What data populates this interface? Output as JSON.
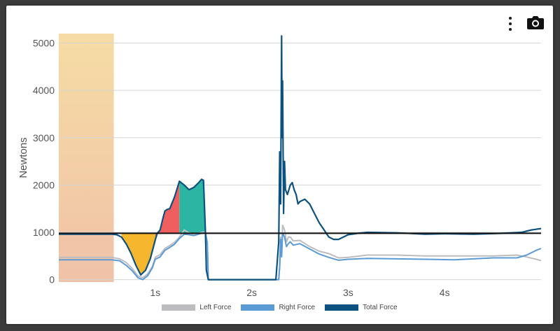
{
  "colors": {
    "left": "#bdbdc1",
    "right": "#5b9bd5",
    "total": "#0d527f",
    "reference": "#111111",
    "fill_unweight": "#f6b62d",
    "fill_braking": "#f05f5f",
    "fill_propulsive": "#2db5a3",
    "weighing_band_top": "#f6dca4",
    "weighing_band_bottom": "#f0c2a8"
  },
  "toolbar": {
    "menu_icon": "vertical-dots-icon",
    "camera_icon": "camera-icon"
  },
  "chart_data": {
    "type": "line",
    "title": "",
    "xlabel": "",
    "ylabel": "Newtons",
    "xlim": [
      0,
      5.0
    ],
    "ylim": [
      -50,
      5200
    ],
    "x_ticks": [
      1,
      2,
      3,
      4
    ],
    "x_tick_labels": [
      "1s",
      "2s",
      "3s",
      "4s"
    ],
    "y_ticks": [
      0,
      1000,
      2000,
      3000,
      4000,
      5000
    ],
    "y_tick_labels": [
      "0",
      "1000",
      "2000",
      "3000",
      "4000",
      "5000"
    ],
    "grid": "horizontal",
    "legend_position": "bottom",
    "reference_line": {
      "y": 980
    },
    "shaded_regions": [
      {
        "name": "weighing",
        "x_start": 0,
        "x_end": 0.57
      },
      {
        "name": "unweighting",
        "x_start": 0.65,
        "x_end": 1.0
      },
      {
        "name": "braking",
        "x_start": 1.0,
        "x_end": 1.25
      },
      {
        "name": "propulsion",
        "x_start": 1.25,
        "x_end": 1.53
      }
    ],
    "series": [
      {
        "name": "Left Force",
        "x": [
          0,
          0.55,
          0.63,
          0.7,
          0.76,
          0.82,
          0.87,
          0.92,
          0.97,
          1.0,
          1.05,
          1.1,
          1.15,
          1.2,
          1.25,
          1.3,
          1.35,
          1.4,
          1.45,
          1.5,
          1.52,
          1.54,
          1.55,
          2.0,
          2.28,
          2.29,
          2.3,
          2.31,
          2.32,
          2.34,
          2.36,
          2.38,
          2.4,
          2.43,
          2.5,
          2.6,
          2.7,
          2.8,
          2.9,
          3.0,
          3.2,
          3.5,
          3.8,
          4.1,
          4.5,
          4.75,
          4.85,
          4.95,
          5.0
        ],
        "y": [
          470,
          470,
          440,
          360,
          240,
          80,
          40,
          120,
          280,
          470,
          530,
          660,
          720,
          790,
          900,
          1050,
          990,
          950,
          980,
          1010,
          1000,
          800,
          0,
          0,
          0,
          300,
          900,
          500,
          1150,
          1050,
          800,
          900,
          900,
          820,
          830,
          700,
          600,
          550,
          460,
          470,
          520,
          520,
          500,
          500,
          500,
          520,
          480,
          430,
          400
        ]
      },
      {
        "name": "Right Force",
        "x": [
          0,
          0.55,
          0.63,
          0.7,
          0.76,
          0.82,
          0.87,
          0.92,
          0.97,
          1.0,
          1.05,
          1.1,
          1.15,
          1.2,
          1.25,
          1.3,
          1.35,
          1.4,
          1.45,
          1.5,
          1.52,
          1.54,
          1.55,
          2.0,
          2.28,
          2.29,
          2.3,
          2.31,
          2.32,
          2.34,
          2.36,
          2.38,
          2.4,
          2.43,
          2.5,
          2.6,
          2.7,
          2.8,
          2.9,
          3.0,
          3.2,
          3.5,
          3.8,
          4.1,
          4.5,
          4.75,
          4.85,
          4.95,
          5.0
        ],
        "y": [
          420,
          420,
          400,
          300,
          190,
          40,
          0,
          80,
          250,
          430,
          480,
          620,
          680,
          750,
          870,
          960,
          950,
          930,
          960,
          990,
          980,
          760,
          0,
          0,
          0,
          280,
          850,
          480,
          980,
          900,
          700,
          760,
          800,
          730,
          760,
          650,
          540,
          470,
          410,
          430,
          450,
          440,
          430,
          420,
          460,
          460,
          520,
          620,
          660
        ]
      },
      {
        "name": "Total Force",
        "x": [
          0,
          0.55,
          0.6,
          0.65,
          0.7,
          0.75,
          0.8,
          0.85,
          0.9,
          0.95,
          1.0,
          1.02,
          1.05,
          1.08,
          1.1,
          1.12,
          1.15,
          1.2,
          1.25,
          1.3,
          1.35,
          1.4,
          1.45,
          1.48,
          1.5,
          1.52,
          1.53,
          1.55,
          2.0,
          2.25,
          2.28,
          2.29,
          2.3,
          2.31,
          2.315,
          2.32,
          2.33,
          2.34,
          2.35,
          2.37,
          2.4,
          2.42,
          2.44,
          2.46,
          2.48,
          2.5,
          2.55,
          2.6,
          2.65,
          2.7,
          2.75,
          2.8,
          2.85,
          2.9,
          2.95,
          3.0,
          3.1,
          3.2,
          3.5,
          3.8,
          4.0,
          4.3,
          4.6,
          4.8,
          4.9,
          5.0
        ],
        "y": [
          960,
          960,
          950,
          900,
          750,
          550,
          300,
          100,
          200,
          450,
          840,
          980,
          1050,
          1300,
          1450,
          1480,
          1500,
          1750,
          2080,
          2000,
          1900,
          1950,
          2050,
          2120,
          2100,
          1000,
          200,
          0,
          0,
          0,
          800,
          2700,
          1600,
          5150,
          3000,
          4200,
          1400,
          2500,
          1900,
          1800,
          2000,
          2050,
          1900,
          1800,
          1600,
          1650,
          1700,
          1600,
          1400,
          1200,
          1050,
          900,
          850,
          850,
          900,
          950,
          980,
          1000,
          990,
          960,
          970,
          960,
          980,
          1000,
          1050,
          1080
        ]
      }
    ]
  }
}
